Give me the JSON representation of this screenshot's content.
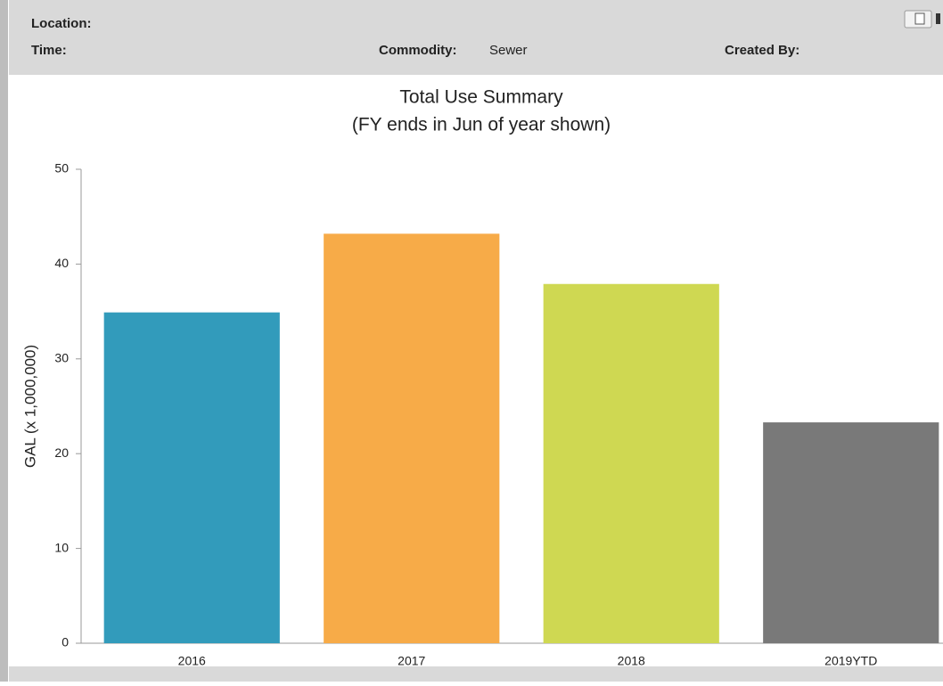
{
  "header": {
    "location_label": "Location:",
    "time_label": "Time:",
    "commodity_label": "Commodity:",
    "commodity_value": "Sewer",
    "created_by_label": "Created By:"
  },
  "chart_data": {
    "type": "bar",
    "title": "Total Use Summary",
    "subtitle": "(FY ends in Jun of year shown)",
    "y_label": "GAL (x 1,000,000)",
    "categories": [
      "2016",
      "2017",
      "2018",
      "2019YTD"
    ],
    "values": [
      34.9,
      43.2,
      37.9,
      23.3
    ],
    "colors": [
      "#329bbb",
      "#f7ab48",
      "#cfd852",
      "#797979"
    ],
    "ylim": [
      0,
      50
    ],
    "yticks": [
      0,
      10,
      20,
      30,
      40,
      50
    ],
    "grid": false
  }
}
